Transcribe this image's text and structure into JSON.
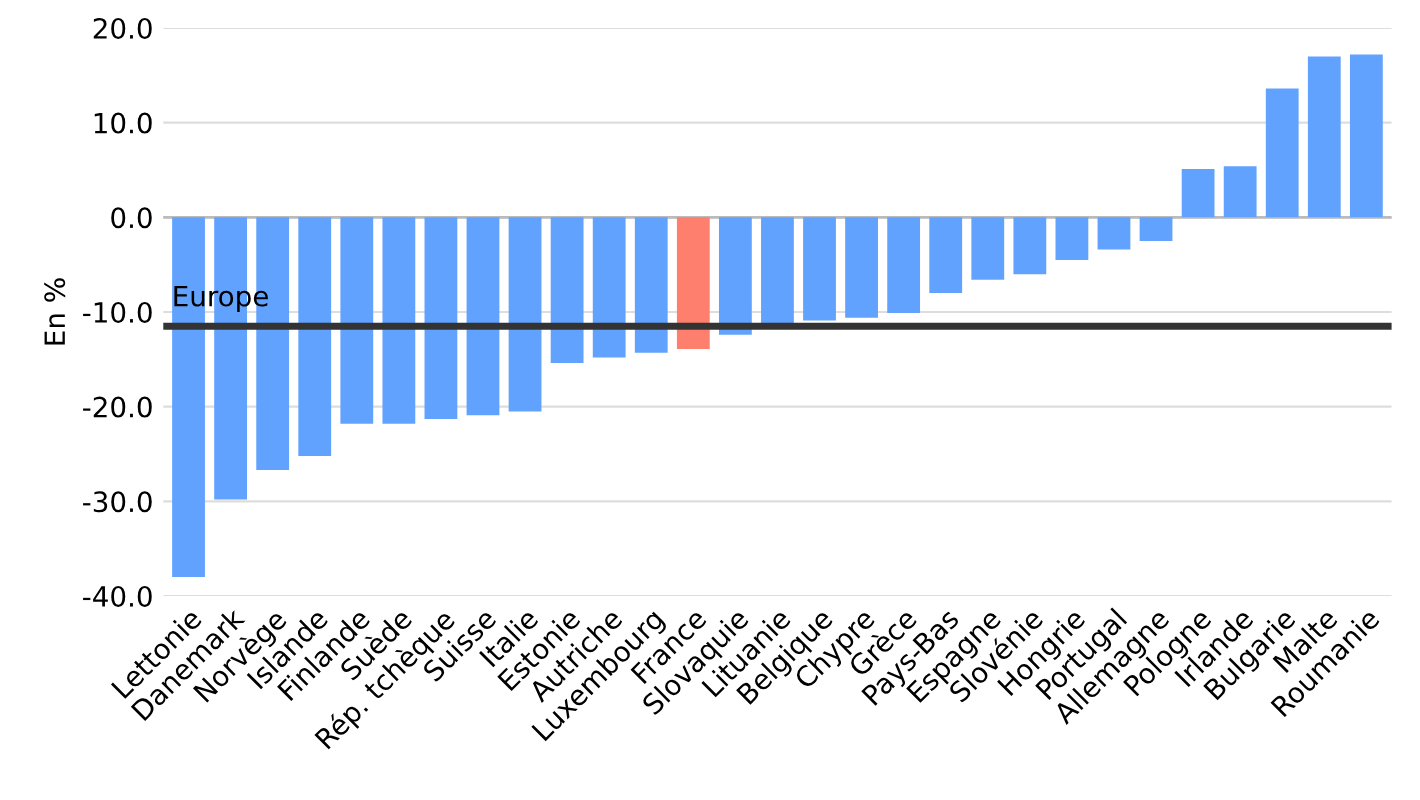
{
  "chart_data": {
    "type": "bar",
    "ylabel": "En %",
    "categories": [
      "Lettonie",
      "Danemark",
      "Norvège",
      "Islande",
      "Finlande",
      "Suède",
      "Rép. tchèque",
      "Suisse",
      "Italie",
      "Estonie",
      "Autriche",
      "Luxembourg",
      "France",
      "Slovaquie",
      "Lituanie",
      "Belgique",
      "Chypre",
      "Grèce",
      "Pays-Bas",
      "Espagne",
      "Slovénie",
      "Hongrie",
      "Portugal",
      "Allemagne",
      "Pologne",
      "Irlande",
      "Bulgarie",
      "Malte",
      "Roumanie"
    ],
    "values": [
      -38.0,
      -29.8,
      -26.7,
      -25.2,
      -21.8,
      -21.8,
      -21.3,
      -20.9,
      -20.5,
      -15.4,
      -14.8,
      -14.3,
      -13.9,
      -12.4,
      -11.4,
      -10.9,
      -10.6,
      -10.1,
      -8.0,
      -6.6,
      -6.0,
      -4.5,
      -3.4,
      -2.5,
      5.1,
      5.4,
      13.6,
      17.0,
      17.2
    ],
    "colors": [
      "#62a2ff",
      "#62a2ff",
      "#62a2ff",
      "#62a2ff",
      "#62a2ff",
      "#62a2ff",
      "#62a2ff",
      "#62a2ff",
      "#62a2ff",
      "#62a2ff",
      "#62a2ff",
      "#62a2ff",
      "#ff7f6e",
      "#62a2ff",
      "#62a2ff",
      "#62a2ff",
      "#62a2ff",
      "#62a2ff",
      "#62a2ff",
      "#62a2ff",
      "#62a2ff",
      "#62a2ff",
      "#62a2ff",
      "#62a2ff",
      "#62a2ff",
      "#62a2ff",
      "#62a2ff",
      "#62a2ff",
      "#62a2ff"
    ],
    "ylim": [
      -40,
      20
    ],
    "yticks": [
      {
        "value": -40,
        "label": "-40.0"
      },
      {
        "value": -30,
        "label": "-30.0"
      },
      {
        "value": -20,
        "label": "-20.0"
      },
      {
        "value": -10,
        "label": "-10.0"
      },
      {
        "value": 0,
        "label": "0.0"
      },
      {
        "value": 10,
        "label": "10.0"
      },
      {
        "value": 20,
        "label": "20.0"
      }
    ],
    "ref_lines": [
      {
        "axis": "y",
        "value": -11.5,
        "label": "Europe",
        "color": "#333333"
      }
    ],
    "grid": "y"
  }
}
